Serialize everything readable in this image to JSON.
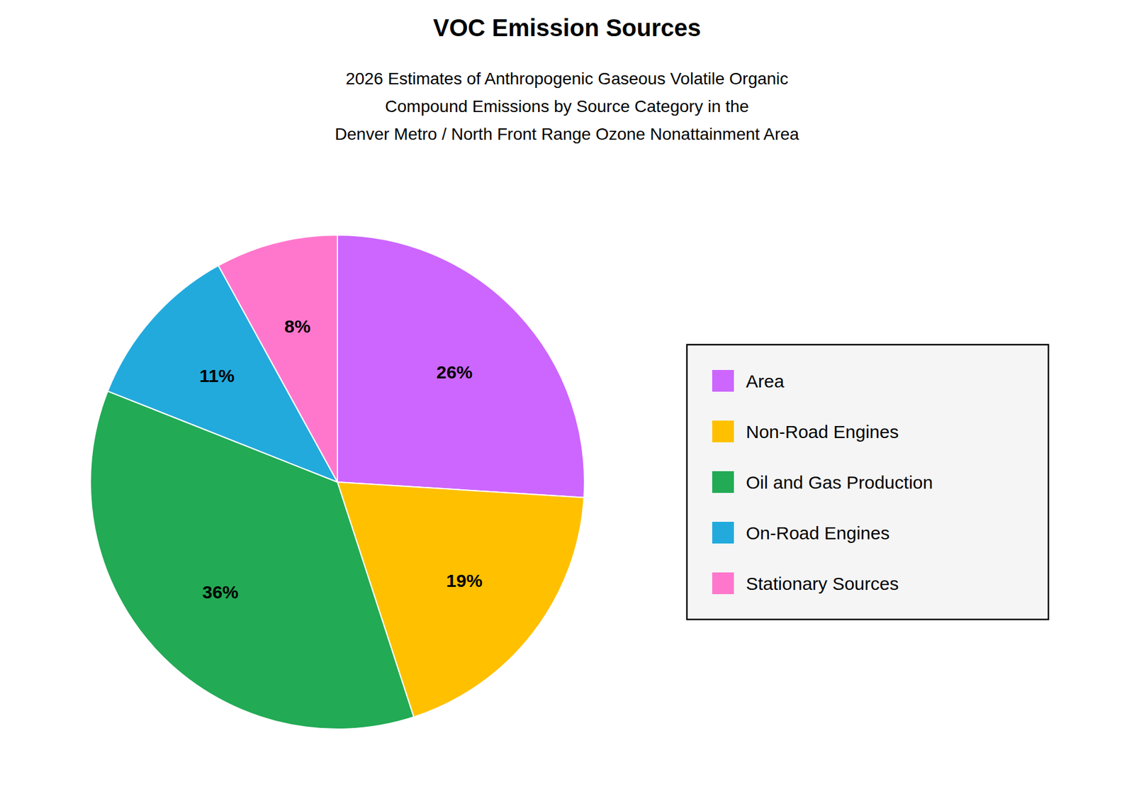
{
  "chart_data": {
    "type": "pie",
    "title": "VOC Emission Sources",
    "subtitle": "2026 Estimates of Anthropogenic Gaseous Volatile Organic\nCompound Emissions by Source Category in the\nDenver Metro / North Front Range Ozone Nonattainment Area",
    "categories": [
      "Area",
      "Non-Road Engines",
      "Oil and Gas Production",
      "On-Road Engines",
      "Stationary Sources"
    ],
    "values": [
      26,
      19,
      36,
      11,
      8
    ],
    "value_labels": [
      "26%",
      "19%",
      "36%",
      "11%",
      "8%"
    ],
    "colors": [
      "#CC66FF",
      "#FFC000",
      "#22AA55",
      "#22AADD",
      "#FF77CC"
    ],
    "data_labels": true,
    "legend": "right"
  }
}
